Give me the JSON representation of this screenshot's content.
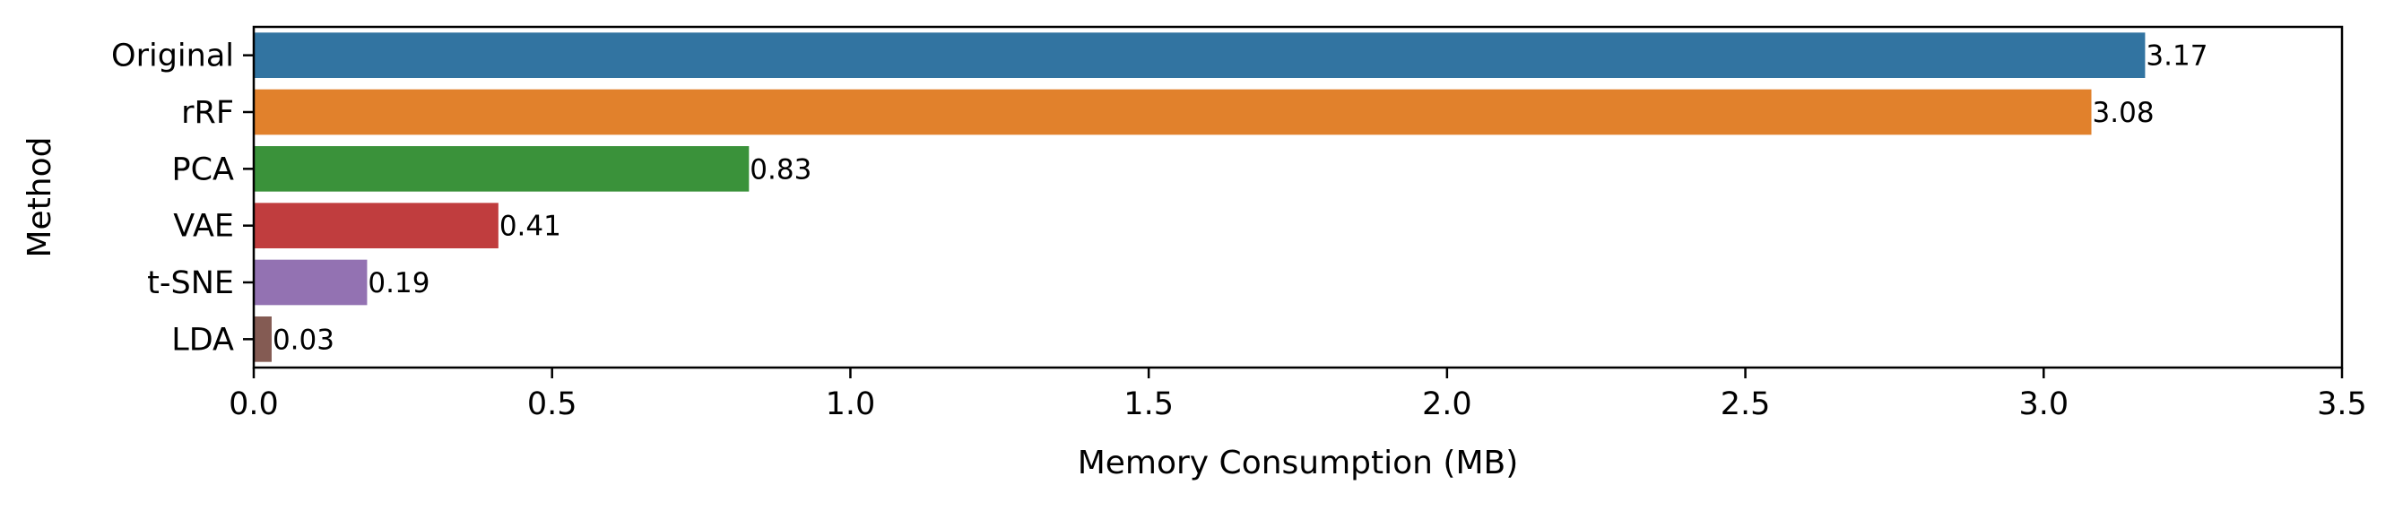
{
  "chart_data": {
    "type": "bar",
    "orientation": "horizontal",
    "title": "",
    "xlabel": "Memory Consumption (MB)",
    "ylabel": "Method",
    "categories": [
      "Original",
      "rRF",
      "PCA",
      "VAE",
      "t-SNE",
      "LDA"
    ],
    "values": [
      3.17,
      3.08,
      0.83,
      0.41,
      0.19,
      0.03
    ],
    "data_labels": [
      "3.17",
      "3.08",
      "0.83",
      "0.41",
      "0.19",
      "0.03"
    ],
    "colors": [
      "#3274a1",
      "#e1812c",
      "#3a923a",
      "#c03d3e",
      "#9372b2",
      "#845b53"
    ],
    "xlim": [
      0,
      3.5
    ],
    "x_ticks": [
      0.0,
      0.5,
      1.0,
      1.5,
      2.0,
      2.5,
      3.0,
      3.5
    ],
    "x_tick_labels": [
      "0.0",
      "0.5",
      "1.0",
      "1.5",
      "2.0",
      "2.5",
      "3.0",
      "3.5"
    ],
    "grid": false,
    "legend": "none"
  }
}
